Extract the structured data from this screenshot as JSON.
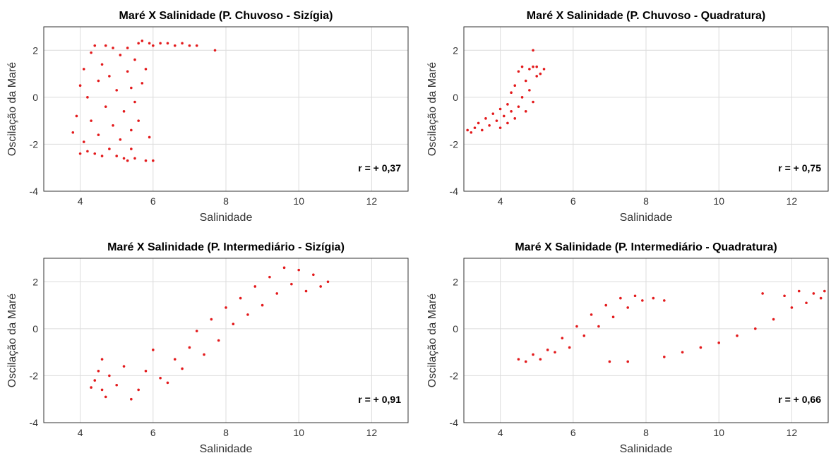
{
  "chart_data": [
    {
      "type": "scatter",
      "title": "Maré X Salinidade (P. Chuvoso - Sizígia)",
      "xlabel": "Salinidade",
      "ylabel": "Oscilação da Maré",
      "xlim": [
        3,
        13
      ],
      "ylim": [
        -4,
        3
      ],
      "xticks": [
        4,
        6,
        8,
        10,
        12
      ],
      "yticks": [
        -4,
        -2,
        0,
        2
      ],
      "grid": true,
      "color": "#e31a1c",
      "annotation": "r = + 0,37",
      "points": [
        [
          3.8,
          -1.5
        ],
        [
          3.9,
          -0.8
        ],
        [
          4.0,
          -2.4
        ],
        [
          4.0,
          0.5
        ],
        [
          4.1,
          -1.9
        ],
        [
          4.1,
          1.2
        ],
        [
          4.2,
          -2.3
        ],
        [
          4.2,
          0.0
        ],
        [
          4.3,
          -1.0
        ],
        [
          4.3,
          1.9
        ],
        [
          4.4,
          -2.4
        ],
        [
          4.4,
          2.2
        ],
        [
          4.5,
          -1.6
        ],
        [
          4.5,
          0.7
        ],
        [
          4.6,
          -2.5
        ],
        [
          4.6,
          1.4
        ],
        [
          4.7,
          2.2
        ],
        [
          4.7,
          -0.4
        ],
        [
          4.8,
          -2.2
        ],
        [
          4.8,
          0.9
        ],
        [
          4.9,
          2.1
        ],
        [
          4.9,
          -1.2
        ],
        [
          5.0,
          -2.5
        ],
        [
          5.0,
          0.3
        ],
        [
          5.1,
          1.8
        ],
        [
          5.1,
          -1.8
        ],
        [
          5.2,
          -2.6
        ],
        [
          5.2,
          -0.6
        ],
        [
          5.3,
          -2.7
        ],
        [
          5.3,
          1.1
        ],
        [
          5.3,
          2.1
        ],
        [
          5.4,
          -2.2
        ],
        [
          5.4,
          -1.4
        ],
        [
          5.4,
          0.4
        ],
        [
          5.5,
          -2.6
        ],
        [
          5.5,
          -0.2
        ],
        [
          5.5,
          1.6
        ],
        [
          5.6,
          2.3
        ],
        [
          5.6,
          -1.0
        ],
        [
          5.7,
          2.4
        ],
        [
          5.7,
          0.6
        ],
        [
          5.8,
          -2.7
        ],
        [
          5.8,
          1.2
        ],
        [
          5.9,
          2.3
        ],
        [
          5.9,
          -1.7
        ],
        [
          6.0,
          2.2
        ],
        [
          6.0,
          -2.7
        ],
        [
          6.2,
          2.3
        ],
        [
          6.4,
          2.3
        ],
        [
          6.6,
          2.2
        ],
        [
          6.8,
          2.3
        ],
        [
          7.0,
          2.2
        ],
        [
          7.2,
          2.2
        ],
        [
          7.7,
          2.0
        ]
      ]
    },
    {
      "type": "scatter",
      "title": "Maré X Salinidade (P. Chuvoso - Quadratura)",
      "xlabel": "Salinidade",
      "ylabel": "Oscilação da Maré",
      "xlim": [
        3,
        13
      ],
      "ylim": [
        -4,
        3
      ],
      "xticks": [
        4,
        6,
        8,
        10,
        12
      ],
      "yticks": [
        -4,
        -2,
        0,
        2
      ],
      "grid": true,
      "color": "#e31a1c",
      "annotation": "r = + 0,75",
      "points": [
        [
          3.1,
          -1.4
        ],
        [
          3.2,
          -1.5
        ],
        [
          3.3,
          -1.3
        ],
        [
          3.4,
          -1.1
        ],
        [
          3.5,
          -1.4
        ],
        [
          3.6,
          -0.9
        ],
        [
          3.7,
          -1.2
        ],
        [
          3.8,
          -0.7
        ],
        [
          3.9,
          -1.0
        ],
        [
          4.0,
          -0.5
        ],
        [
          4.0,
          -1.3
        ],
        [
          4.1,
          -0.8
        ],
        [
          4.2,
          -0.3
        ],
        [
          4.2,
          -1.1
        ],
        [
          4.3,
          -0.6
        ],
        [
          4.3,
          0.2
        ],
        [
          4.4,
          -0.9
        ],
        [
          4.4,
          0.5
        ],
        [
          4.5,
          -0.4
        ],
        [
          4.5,
          1.1
        ],
        [
          4.6,
          0.0
        ],
        [
          4.6,
          1.3
        ],
        [
          4.7,
          0.7
        ],
        [
          4.7,
          -0.6
        ],
        [
          4.8,
          1.2
        ],
        [
          4.8,
          0.3
        ],
        [
          4.9,
          1.3
        ],
        [
          4.9,
          -0.2
        ],
        [
          5.0,
          0.9
        ],
        [
          5.0,
          1.3
        ],
        [
          5.1,
          1.0
        ],
        [
          5.2,
          1.2
        ],
        [
          4.9,
          2.0
        ]
      ]
    },
    {
      "type": "scatter",
      "title": "Maré X Salinidade (P. Intermediário - Sizígia)",
      "xlabel": "Salinidade",
      "ylabel": "Oscilação da Maré",
      "xlim": [
        3,
        13
      ],
      "ylim": [
        -4,
        3
      ],
      "xticks": [
        4,
        6,
        8,
        10,
        12
      ],
      "yticks": [
        -4,
        -2,
        0,
        2
      ],
      "grid": true,
      "color": "#e31a1c",
      "annotation": "r = + 0,91",
      "points": [
        [
          4.3,
          -2.5
        ],
        [
          4.4,
          -2.2
        ],
        [
          4.5,
          -1.8
        ],
        [
          4.6,
          -2.6
        ],
        [
          4.6,
          -1.3
        ],
        [
          4.7,
          -2.9
        ],
        [
          4.8,
          -2.0
        ],
        [
          5.0,
          -2.4
        ],
        [
          5.2,
          -1.6
        ],
        [
          5.4,
          -3.0
        ],
        [
          5.6,
          -2.6
        ],
        [
          5.8,
          -1.8
        ],
        [
          6.0,
          -0.9
        ],
        [
          6.2,
          -2.1
        ],
        [
          6.4,
          -2.3
        ],
        [
          6.6,
          -1.3
        ],
        [
          6.8,
          -1.7
        ],
        [
          7.0,
          -0.8
        ],
        [
          7.2,
          -0.1
        ],
        [
          7.4,
          -1.1
        ],
        [
          7.6,
          0.4
        ],
        [
          7.8,
          -0.5
        ],
        [
          8.0,
          0.9
        ],
        [
          8.2,
          0.2
        ],
        [
          8.4,
          1.3
        ],
        [
          8.6,
          0.6
        ],
        [
          8.8,
          1.8
        ],
        [
          9.0,
          1.0
        ],
        [
          9.2,
          2.2
        ],
        [
          9.4,
          1.5
        ],
        [
          9.6,
          2.6
        ],
        [
          9.8,
          1.9
        ],
        [
          10.0,
          2.5
        ],
        [
          10.2,
          1.6
        ],
        [
          10.4,
          2.3
        ],
        [
          10.6,
          1.8
        ],
        [
          10.8,
          2.0
        ]
      ]
    },
    {
      "type": "scatter",
      "title": "Maré X Salinidade (P. Intermediário - Quadratura)",
      "xlabel": "Salinidade",
      "ylabel": "Oscilação da Maré",
      "xlim": [
        3,
        13
      ],
      "ylim": [
        -4,
        3
      ],
      "xticks": [
        4,
        6,
        8,
        10,
        12
      ],
      "yticks": [
        -4,
        -2,
        0,
        2
      ],
      "grid": true,
      "color": "#e31a1c",
      "annotation": "r = + 0,66",
      "points": [
        [
          4.5,
          -1.3
        ],
        [
          4.7,
          -1.4
        ],
        [
          4.9,
          -1.1
        ],
        [
          5.1,
          -1.3
        ],
        [
          5.3,
          -0.9
        ],
        [
          5.5,
          -1.0
        ],
        [
          5.7,
          -0.4
        ],
        [
          5.9,
          -0.8
        ],
        [
          6.1,
          0.1
        ],
        [
          6.3,
          -0.3
        ],
        [
          6.5,
          0.6
        ],
        [
          6.7,
          0.1
        ],
        [
          6.9,
          1.0
        ],
        [
          7.1,
          0.5
        ],
        [
          7.3,
          1.3
        ],
        [
          7.5,
          0.9
        ],
        [
          7.7,
          1.4
        ],
        [
          7.9,
          1.2
        ],
        [
          8.2,
          1.3
        ],
        [
          8.5,
          1.2
        ],
        [
          7.0,
          -1.4
        ],
        [
          7.5,
          -1.4
        ],
        [
          8.5,
          -1.2
        ],
        [
          9.0,
          -1.0
        ],
        [
          9.5,
          -0.8
        ],
        [
          10.0,
          -0.6
        ],
        [
          10.5,
          -0.3
        ],
        [
          11.0,
          0.0
        ],
        [
          11.2,
          1.5
        ],
        [
          11.5,
          0.4
        ],
        [
          11.8,
          1.4
        ],
        [
          12.0,
          0.9
        ],
        [
          12.2,
          1.6
        ],
        [
          12.4,
          1.1
        ],
        [
          12.6,
          1.5
        ],
        [
          12.8,
          1.3
        ],
        [
          12.9,
          1.6
        ]
      ]
    }
  ]
}
